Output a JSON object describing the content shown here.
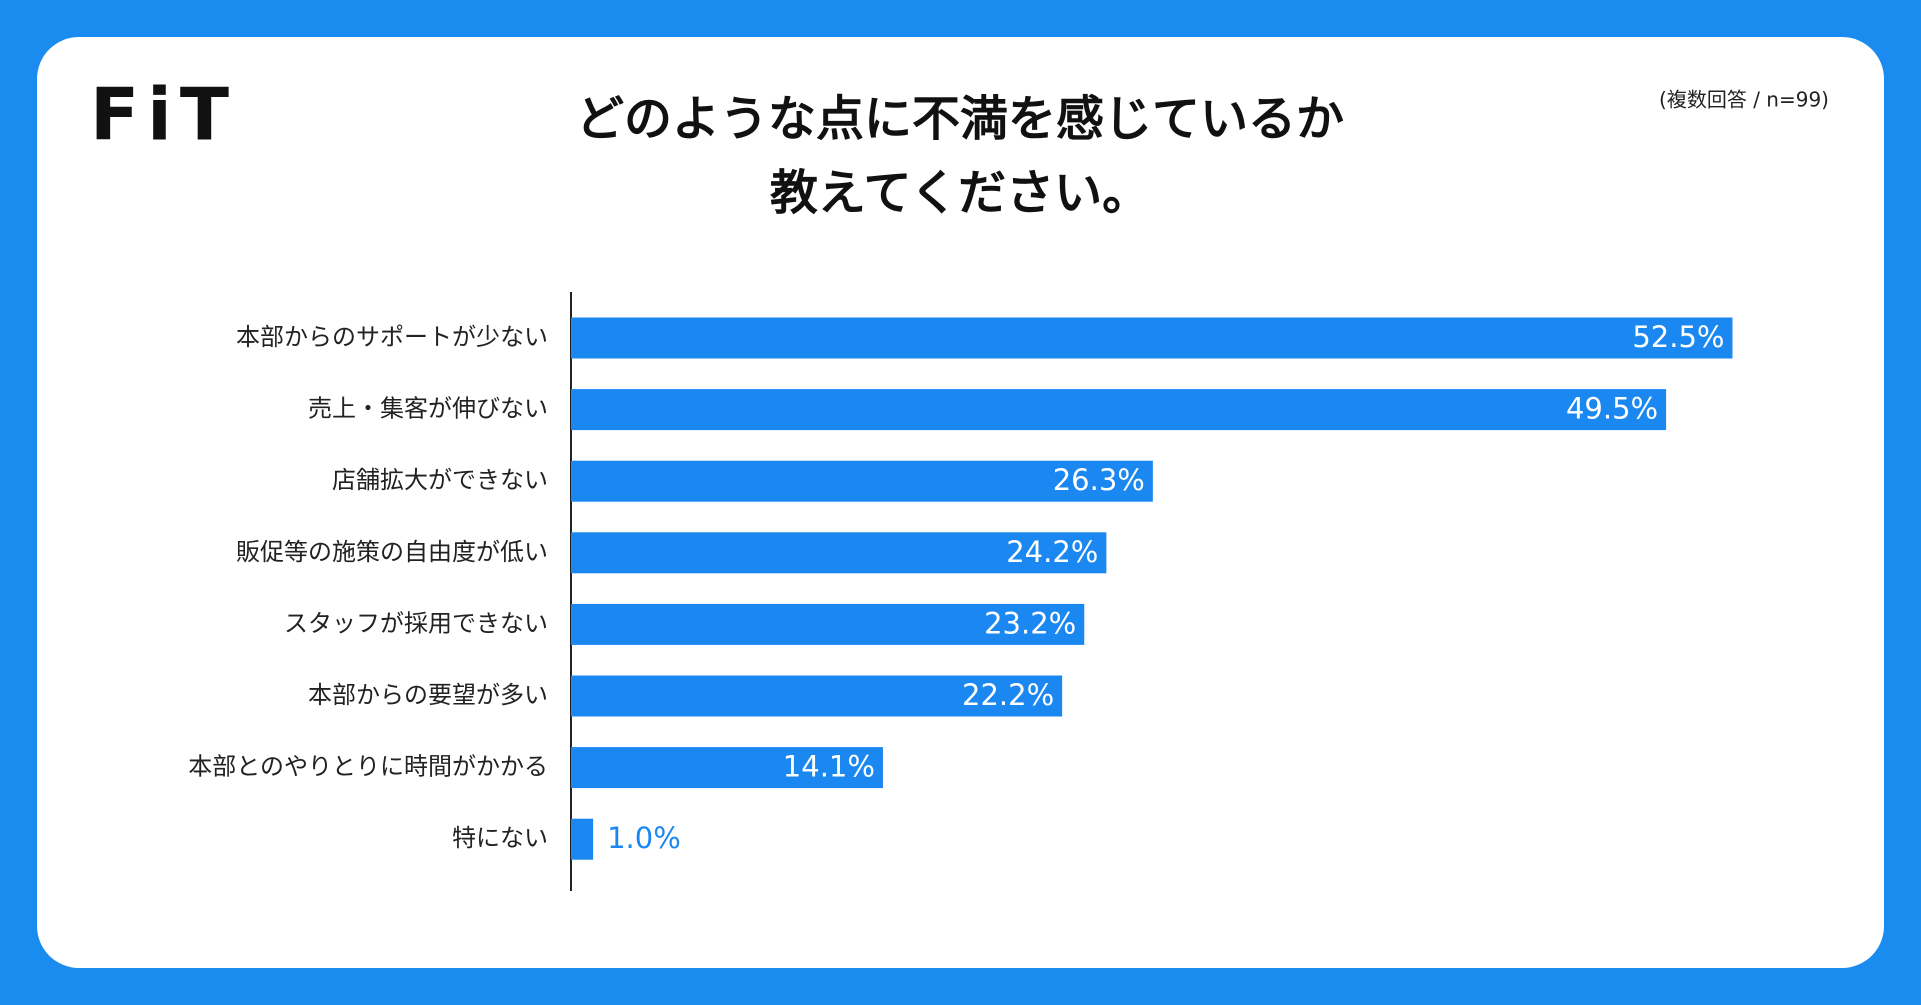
{
  "logo": "FiT",
  "chart_data": {
    "type": "bar",
    "orientation": "horizontal",
    "title": [
      "どのような点に不満を感じているか",
      "教えてください。"
    ],
    "subtitle": "(複数回答 / n=99)",
    "categories": [
      "本部からのサポートが少ない",
      "売上・集客が伸びない",
      "店舗拡大ができない",
      "販促等の施策の自由度が低い",
      "スタッフが採用できない",
      "本部からの要望が多い",
      "本部とのやりとりに時間がかかる",
      "特にない"
    ],
    "values": [
      52.5,
      49.5,
      26.3,
      24.2,
      23.2,
      22.2,
      14.1,
      1.0
    ],
    "value_labels": [
      "52.5%",
      "49.5%",
      "26.3%",
      "24.2%",
      "23.2%",
      "22.2%",
      "14.1%",
      "1.0%"
    ],
    "color": "#1a88f0",
    "xlim": [
      0,
      55
    ]
  }
}
